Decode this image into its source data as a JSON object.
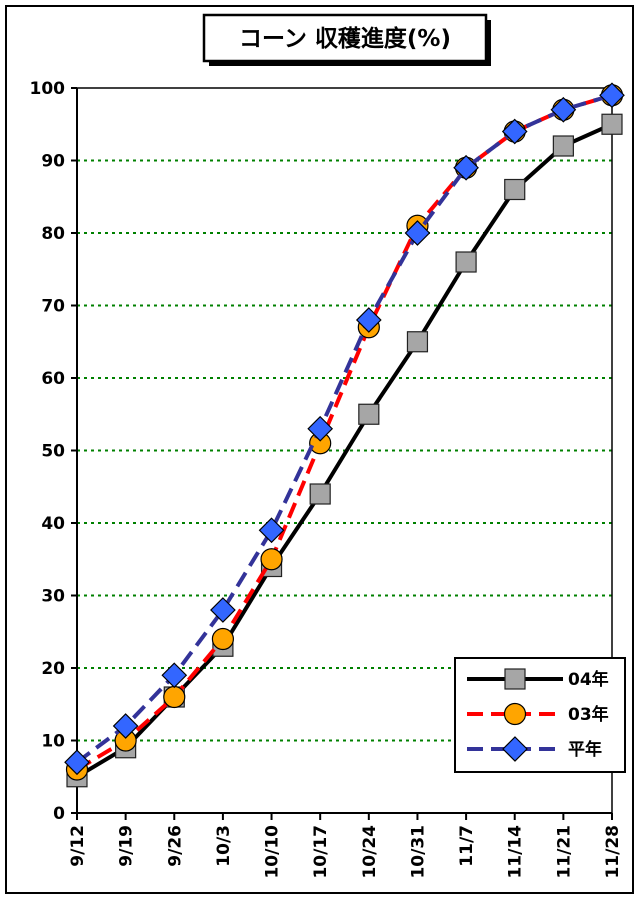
{
  "chart_data": {
    "type": "line",
    "title": "コーン 収穫進度(%)",
    "categories": [
      "9/12",
      "9/19",
      "9/26",
      "10/3",
      "10/10",
      "10/17",
      "10/24",
      "10/31",
      "11/7",
      "11/14",
      "11/21",
      "11/28"
    ],
    "ylim": [
      0,
      100
    ],
    "yticks": [
      "0",
      "10",
      "20",
      "30",
      "40",
      "50",
      "60",
      "70",
      "80",
      "90",
      "100"
    ],
    "grid": "horizontal dotted",
    "legend_position": "bottom-right",
    "series": [
      {
        "name": "04年",
        "values": [
          5,
          9,
          16,
          23,
          34,
          44,
          55,
          65,
          76,
          86,
          92,
          95
        ],
        "color": "#000000",
        "marker": "square",
        "marker_color": "#a6a6a6",
        "dash": "solid"
      },
      {
        "name": "03年",
        "values": [
          6,
          10,
          16,
          24,
          35,
          51,
          67,
          81,
          89,
          94,
          97,
          99
        ],
        "color": "#ff0000",
        "marker": "circle",
        "marker_color": "#ffa500",
        "dash": "dashed"
      },
      {
        "name": "平年",
        "values": [
          7,
          12,
          19,
          28,
          39,
          53,
          68,
          80,
          89,
          94,
          97,
          99
        ],
        "color": "#333399",
        "marker": "diamond",
        "marker_color": "#3366ff",
        "dash": "dashed"
      }
    ]
  }
}
